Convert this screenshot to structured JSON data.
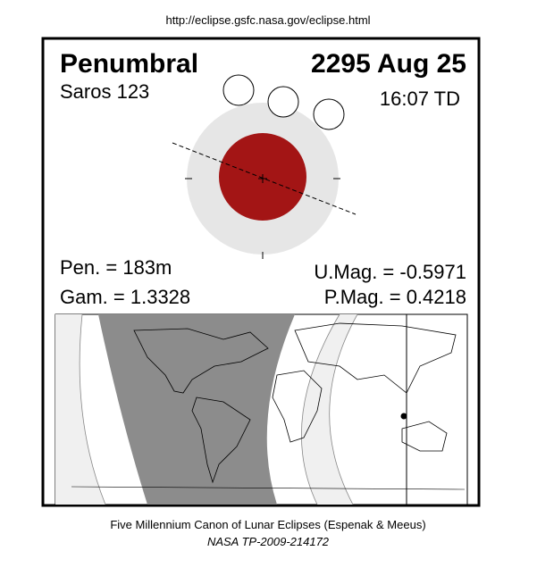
{
  "header": {
    "url": "http://eclipse.gsfc.nasa.gov/eclipse.html"
  },
  "panel": {
    "type": "Penumbral",
    "date": "2295 Aug 25",
    "saros": "Saros 123",
    "time": "16:07 TD",
    "pen": "Pen. = 183m",
    "gam": "Gam. = 1.3328",
    "umag": "U.Mag. = -0.5971",
    "pmag": "P.Mag. = 0.4218"
  },
  "footer": {
    "line1": "Five Millennium Canon of Lunar Eclipses (Espenak & Meeus)",
    "line2": "NASA TP-2009-214172"
  }
}
